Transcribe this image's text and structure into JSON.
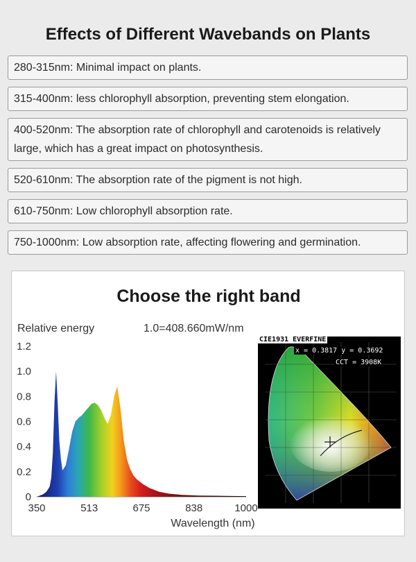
{
  "title": "Effects of Different Wavebands on Plants",
  "bands": [
    {
      "text": "280-315nm: Minimal impact on plants."
    },
    {
      "text": "315-400nm: less chlorophyll absorption, preventing stem elongation."
    },
    {
      "text": "400-520nm: The absorption rate of chlorophyll and carotenoids is relatively large, which has a great impact on photosynthesis."
    },
    {
      "text": "520-610nm: The absorption rate of the pigment is not high."
    },
    {
      "text": "610-750nm: Low chlorophyll absorption rate."
    },
    {
      "text": "750-1000nm: Low absorption rate, affecting flowering and germination."
    }
  ],
  "card": {
    "title": "Choose the right band"
  },
  "chart_data": {
    "type": "area",
    "title": "",
    "ylabel": "Relative energy",
    "xlabel": "Wavelength (nm)",
    "note": "1.0=408.660mW/nm",
    "xlim": [
      350,
      1000
    ],
    "ylim": [
      0,
      1.2
    ],
    "xticks": [
      "350",
      "513",
      "675",
      "838",
      "1000"
    ],
    "yticks": [
      "0",
      "0.2",
      "0.4",
      "0.6",
      "0.8",
      "1.0",
      "1.2"
    ],
    "x": [
      350,
      360,
      370,
      380,
      390,
      395,
      400,
      405,
      410,
      415,
      420,
      425,
      430,
      440,
      450,
      460,
      470,
      480,
      490,
      500,
      510,
      520,
      530,
      540,
      550,
      560,
      570,
      580,
      590,
      600,
      610,
      620,
      630,
      640,
      650,
      660,
      670,
      680,
      690,
      700,
      710,
      720,
      730,
      740,
      750,
      760,
      780,
      800,
      850,
      900,
      950,
      1000
    ],
    "y": [
      0,
      0.01,
      0.02,
      0.04,
      0.08,
      0.15,
      0.35,
      0.75,
      1.0,
      0.75,
      0.45,
      0.3,
      0.21,
      0.25,
      0.38,
      0.52,
      0.6,
      0.63,
      0.65,
      0.68,
      0.71,
      0.74,
      0.75,
      0.73,
      0.69,
      0.63,
      0.58,
      0.65,
      0.8,
      0.88,
      0.7,
      0.45,
      0.3,
      0.22,
      0.17,
      0.14,
      0.12,
      0.1,
      0.085,
      0.07,
      0.06,
      0.05,
      0.04,
      0.035,
      0.03,
      0.025,
      0.02,
      0.015,
      0.01,
      0.008,
      0.006,
      0.005
    ]
  },
  "cie": {
    "header": "CIE1931 EVERFINE",
    "xy_readout": "x = 0.3817  y = 0.3692",
    "cct_readout": "CCT = 3908K"
  }
}
